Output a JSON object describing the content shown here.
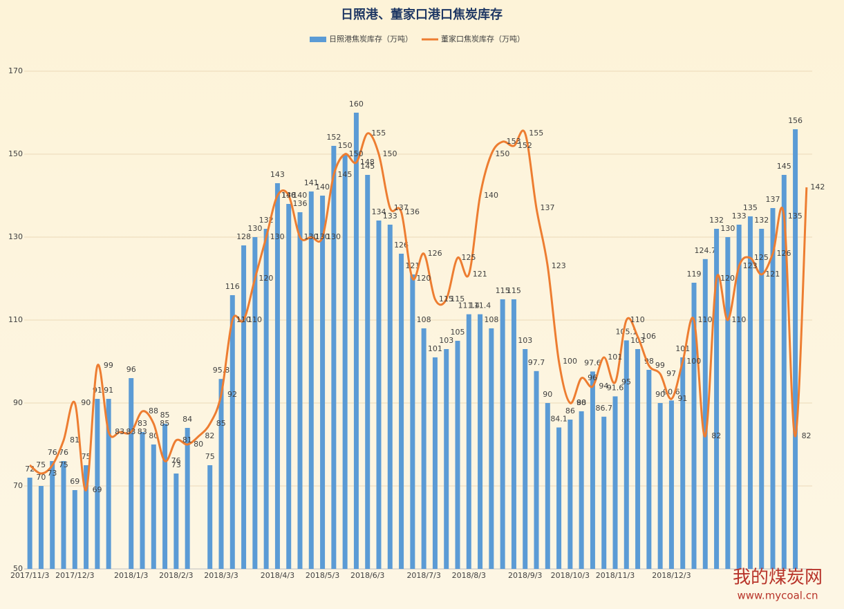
{
  "chart_data": {
    "type": "bar-line",
    "title": "日照港、董家口港口焦炭库存",
    "watermark": "我的煤炭网",
    "watermark_url": "www.mycoal.cn",
    "categories": [
      "2017/11/3",
      null,
      null,
      null,
      "2017/12/3",
      null,
      null,
      null,
      null,
      "2018/1/3",
      null,
      null,
      null,
      "2018/2/3",
      null,
      null,
      null,
      "2018/3/3",
      null,
      null,
      null,
      null,
      "2018/4/3",
      null,
      null,
      null,
      "2018/5/3",
      null,
      null,
      null,
      "2018/6/3",
      null,
      null,
      null,
      null,
      "2018/7/3",
      null,
      null,
      null,
      "2018/8/3",
      null,
      null,
      null,
      null,
      "2018/9/3",
      null,
      null,
      null,
      "2018/10/3",
      null,
      null,
      null,
      "2018/11/3",
      null,
      null,
      null,
      null,
      "2018/12/3",
      null,
      null,
      null,
      null,
      null,
      null,
      null,
      null,
      null,
      null,
      null,
      null
    ],
    "series": [
      {
        "name": "日照港焦炭库存（万吨）",
        "type": "bar",
        "color": "#5b9bd5",
        "values": [
          72,
          70,
          76,
          76,
          69,
          75,
          91,
          91,
          null,
          96,
          83,
          80,
          85,
          73,
          84,
          null,
          75,
          95.8,
          116,
          128,
          130,
          132,
          143,
          138,
          136,
          141,
          140,
          152,
          150,
          160,
          145,
          134,
          133,
          126,
          121,
          108,
          101,
          103,
          105,
          111.4,
          111.4,
          108,
          115,
          115,
          103,
          97.7,
          90,
          84.1,
          86,
          88,
          97.6,
          86.7,
          91.6,
          105.1,
          103,
          98,
          90,
          90.6,
          101,
          119,
          124.7,
          132,
          130,
          133,
          135,
          132,
          137,
          145,
          156,
          null
        ]
      },
      {
        "name": "董家口焦炭库存（万吨）",
        "type": "line",
        "color": "#ed7d31",
        "values": [
          75,
          73,
          75,
          81,
          90,
          69,
          99,
          83,
          83,
          83,
          88,
          85,
          76,
          81,
          80,
          82,
          85,
          92,
          110,
          110,
          120,
          130,
          140,
          140,
          130,
          130,
          130,
          145,
          150,
          148,
          155,
          150,
          137,
          136,
          120,
          126,
          115,
          115,
          125,
          121,
          140,
          150,
          153,
          152,
          155,
          137,
          123,
          100,
          90,
          96,
          94,
          101,
          95,
          110,
          106,
          99,
          97,
          91,
          100,
          110,
          82,
          120,
          110,
          123,
          125,
          121,
          126,
          135,
          82,
          142
        ]
      }
    ],
    "ylim": [
      50,
      170
    ],
    "yticks": [
      50,
      70,
      90,
      110,
      130,
      150,
      170
    ],
    "grid": true,
    "legend": "top"
  }
}
